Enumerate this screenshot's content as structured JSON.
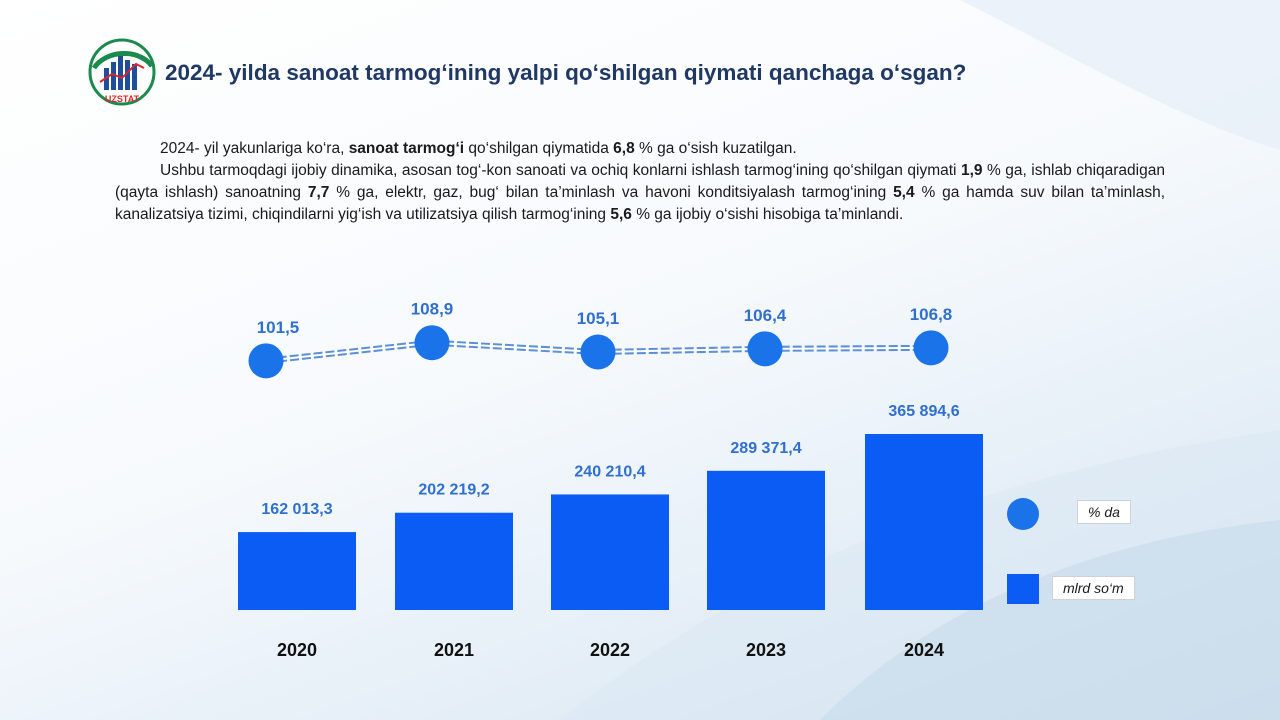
{
  "header": {
    "title": "2024- yilda sanoat tarmog‘ining yalpi qo‘shilgan qiymati qanchaga o‘sgan?",
    "logo_text": "UZSTAT"
  },
  "paragraphs": {
    "p1": [
      {
        "t": "2024- yil yakunlariga  ko‘ra, ",
        "b": false
      },
      {
        "t": "sanoat tarmog‘i",
        "b": true
      },
      {
        "t": " qo‘shilgan qiymatida ",
        "b": false
      },
      {
        "t": "6,8",
        "b": true
      },
      {
        "t": " % ga o‘sish kuzatilgan.",
        "b": false
      }
    ],
    "p2": [
      {
        "t": "Ushbu tarmoqdagi ijobiy dinamika, asosan tog‘-kon sanoati va ochiq konlarni ishlash tarmog‘ining qo‘shilgan qiymati ",
        "b": false
      },
      {
        "t": "1,9",
        "b": true
      },
      {
        "t": " % ga, ishlab chiqaradigan (qayta ishlash) sanoatning ",
        "b": false
      },
      {
        "t": "7,7",
        "b": true
      },
      {
        "t": " % ga, elektr, gaz, bug‘ bilan ta’minlash va havoni konditsiyalash tarmog‘ining ",
        "b": false
      },
      {
        "t": "5,4",
        "b": true
      },
      {
        "t": " % ga hamda suv bilan ta’minlash, kanalizatsiya tizimi, chiqindilarni yig‘ish va utilizatsiya qilish tarmog‘ining ",
        "b": false
      },
      {
        "t": "5,6",
        "b": true
      },
      {
        "t": " % ga ijobiy o‘sishi hisobiga ta’minlandi.",
        "b": false
      }
    ]
  },
  "chart_data": {
    "type": "bar",
    "categories": [
      "2020",
      "2021",
      "2022",
      "2023",
      "2024"
    ],
    "series": [
      {
        "name": "mlrd so‘m",
        "type": "bar",
        "values": [
          162013.3,
          202219.2,
          240210.4,
          289371.4,
          365894.6
        ],
        "labels": [
          "162 013,3",
          "202 219,2",
          "240 210,4",
          "289 371,4",
          "365 894,6"
        ]
      },
      {
        "name": "% da",
        "type": "line",
        "values": [
          101.5,
          108.9,
          105.1,
          106.4,
          106.8
        ],
        "labels": [
          "101,5",
          "108,9",
          "105,1",
          "106,4",
          "106,8"
        ]
      }
    ],
    "ylim": [
      0,
      400000
    ],
    "legend": "right",
    "grid": false
  },
  "legend": {
    "pct_label": "% da",
    "bar_label": "mlrd so‘m"
  },
  "colors": {
    "bar": "#0a5cf5",
    "dot": "#1a73e8",
    "dot_label": "#2f6fce",
    "bar_label": "#2f6fce",
    "title": "#1f3864",
    "year": "#111111"
  }
}
